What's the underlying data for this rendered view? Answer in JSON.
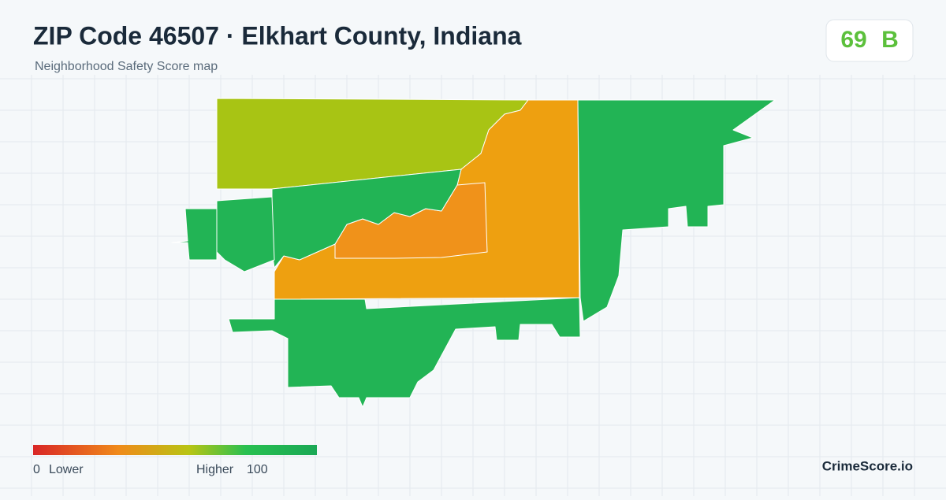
{
  "header": {
    "title": "ZIP Code 46507 · Elkhart County, Indiana",
    "subtitle": "Neighborhood Safety Score map"
  },
  "score": {
    "value": 69,
    "grade": "B"
  },
  "legend": {
    "min": 0,
    "min_label": "Lower",
    "max_label": "Higher",
    "max": 100
  },
  "brand": "CrimeScore.io"
}
